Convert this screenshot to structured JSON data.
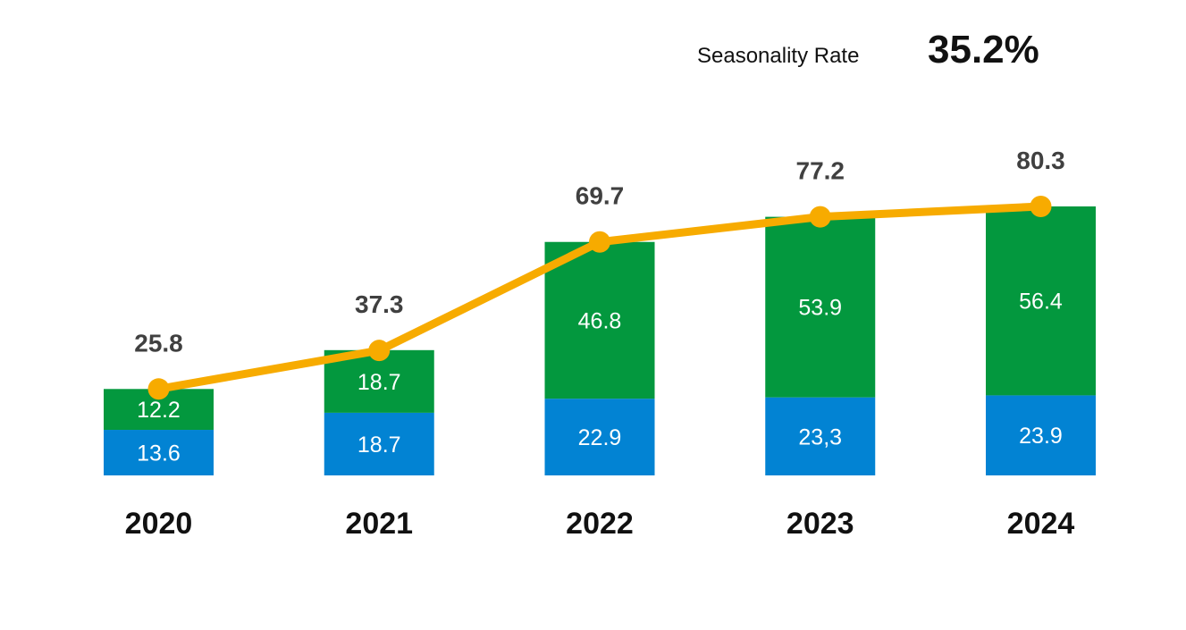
{
  "kpi": {
    "label": "Seasonality Rate",
    "value": "35.2%"
  },
  "chart_data": {
    "type": "bar",
    "stacked": true,
    "categories": [
      "2020",
      "2021",
      "2022",
      "2023",
      "2024"
    ],
    "series": [
      {
        "values": [
          13.6,
          18.7,
          22.9,
          23.3,
          23.9
        ],
        "labels": [
          "13.6",
          "18.7",
          "22.9",
          "23,3",
          "23.9"
        ],
        "color": "#0283d3"
      },
      {
        "values": [
          12.2,
          18.7,
          46.8,
          53.9,
          56.4
        ],
        "labels": [
          "12.2",
          "18.7",
          "46.8",
          "53.9",
          "56.4"
        ],
        "color": "#03983e"
      }
    ],
    "line": {
      "values": [
        25.8,
        37.3,
        69.7,
        77.2,
        80.3
      ],
      "labels": [
        "25.8",
        "37.3",
        "69.7",
        "77.2",
        "80.3"
      ],
      "color": "#f7ab00"
    },
    "ylim": [
      0,
      80.3
    ],
    "grid": false,
    "legend": "none"
  }
}
